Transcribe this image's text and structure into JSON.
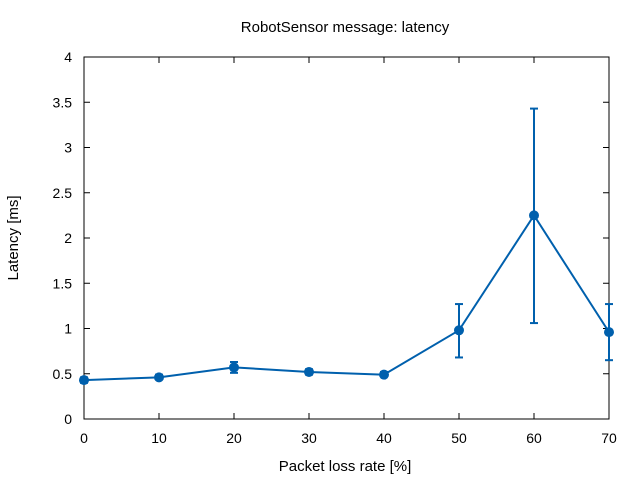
{
  "chart_data": {
    "type": "line",
    "title": "RobotSensor message: latency",
    "xlabel": "Packet loss rate [%]",
    "ylabel": "Latency [ms]",
    "xlim": [
      0,
      70
    ],
    "ylim": [
      0,
      4
    ],
    "x_ticks": [
      "0",
      "10",
      "20",
      "30",
      "40",
      "50",
      "60",
      "70"
    ],
    "y_ticks": [
      "0",
      "0.5",
      "1",
      "1.5",
      "2",
      "2.5",
      "3",
      "3.5",
      "4"
    ],
    "grid": false,
    "legend": "none",
    "series": [
      {
        "color": "#0060ad",
        "x": [
          0,
          10,
          20,
          30,
          40,
          50,
          60,
          70
        ],
        "values": [
          0.43,
          0.46,
          0.57,
          0.52,
          0.49,
          0.98,
          2.25,
          0.96
        ],
        "error_low": [
          0.4,
          0.44,
          0.51,
          0.49,
          0.47,
          0.68,
          1.06,
          0.65
        ],
        "error_high": [
          0.46,
          0.49,
          0.63,
          0.55,
          0.52,
          1.27,
          3.43,
          1.27
        ]
      }
    ]
  }
}
